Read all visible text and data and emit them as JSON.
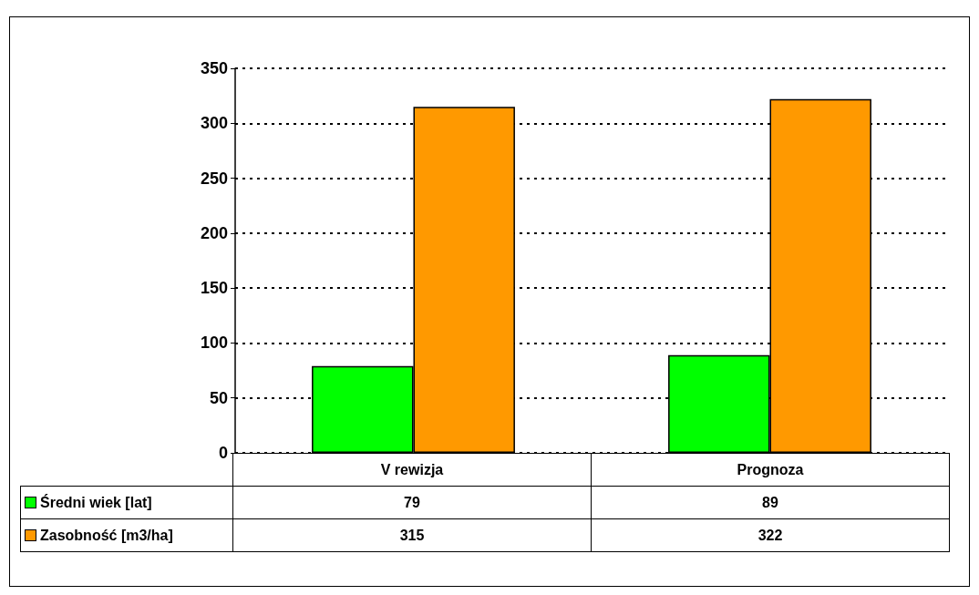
{
  "chart_data": {
    "type": "bar",
    "categories": [
      "V rewizja",
      "Prognoza"
    ],
    "series": [
      {
        "name": "Średni wiek [lat]",
        "color": "#00ff00",
        "values": [
          79,
          89
        ]
      },
      {
        "name": "Zasobność [m3/ha]",
        "color": "#ff9900",
        "values": [
          315,
          322
        ]
      }
    ],
    "ylim": [
      0,
      350
    ],
    "yticks": [
      0,
      50,
      100,
      150,
      200,
      250,
      300,
      350
    ],
    "grid": "y",
    "legend": "bottom",
    "data_labels": true
  }
}
